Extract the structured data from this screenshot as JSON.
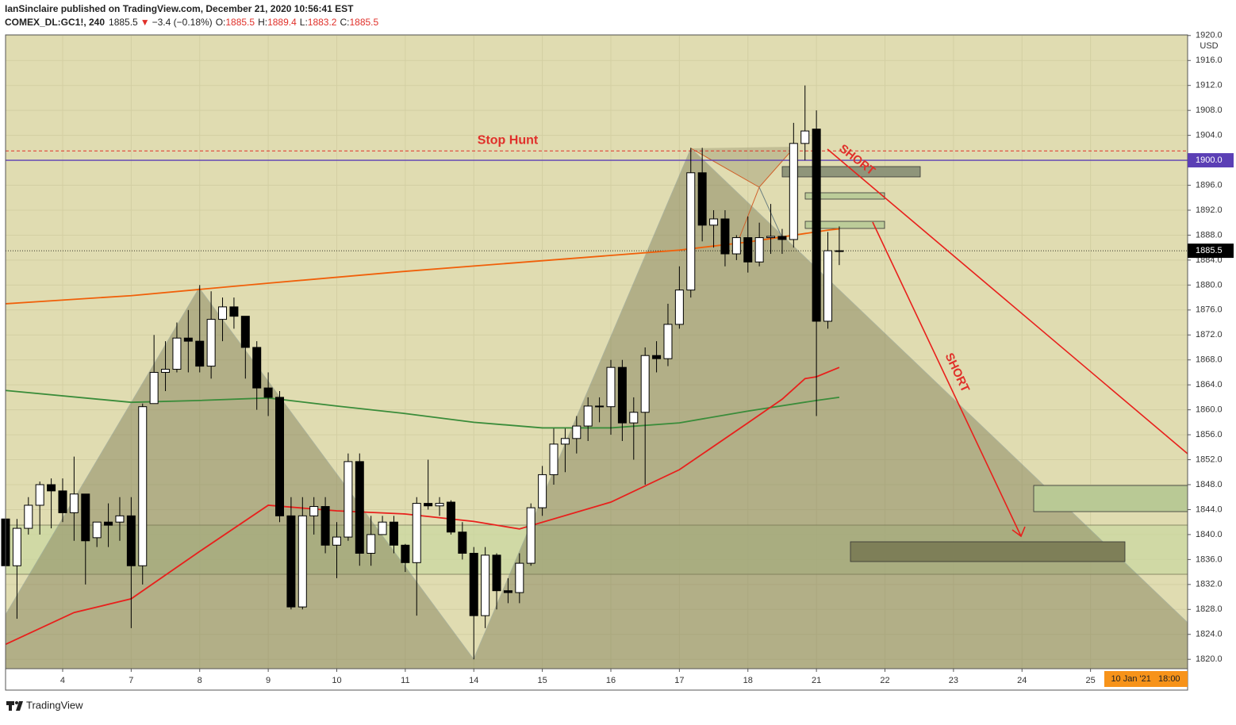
{
  "header": {
    "line1": "IanSinclaire published on TradingView.com, December 21, 2020 10:56:41 EST",
    "symbol": "COMEX_DL:GC1!, 240",
    "last": "1885.5",
    "arrow": "▼",
    "change": "−3.4 (−0.18%)",
    "o_label": "O:",
    "o": "1885.5",
    "h_label": "H:",
    "h": "1889.4",
    "l_label": "L:",
    "l": "1883.2",
    "c_label": "C:",
    "c": "1885.5"
  },
  "footer": {
    "brand": "TradingView"
  },
  "chart_data": {
    "type": "candlestick",
    "currency": "USD",
    "ylim": [
      1818.5,
      1920.1
    ],
    "xlim": [
      0,
      103.5
    ],
    "grid": true,
    "yticks": [
      {
        "value": 1820,
        "label": "1820.0"
      },
      {
        "value": 1824,
        "label": "1824.0"
      },
      {
        "value": 1828,
        "label": "1828.0"
      },
      {
        "value": 1832,
        "label": "1832.0"
      },
      {
        "value": 1836,
        "label": "1836.0"
      },
      {
        "value": 1840,
        "label": "1840.0"
      },
      {
        "value": 1844,
        "label": "1844.0"
      },
      {
        "value": 1848,
        "label": "1848.0"
      },
      {
        "value": 1852,
        "label": "1852.0"
      },
      {
        "value": 1856,
        "label": "1856.0"
      },
      {
        "value": 1860,
        "label": "1860.0"
      },
      {
        "value": 1864,
        "label": "1864.0"
      },
      {
        "value": 1868,
        "label": "1868.0"
      },
      {
        "value": 1872,
        "label": "1872.0"
      },
      {
        "value": 1876,
        "label": "1876.0"
      },
      {
        "value": 1880,
        "label": "1880.0"
      },
      {
        "value": 1884,
        "label": "1884.0"
      },
      {
        "value": 1888,
        "label": "1888.0"
      },
      {
        "value": 1892,
        "label": "1892.0"
      },
      {
        "value": 1896,
        "label": "1896.0"
      },
      {
        "value": 1904,
        "label": "1904.0"
      },
      {
        "value": 1908,
        "label": "1908.0"
      },
      {
        "value": 1912,
        "label": "1912.0"
      },
      {
        "value": 1916,
        "label": "1916.0"
      },
      {
        "value": 1920,
        "label": "1920.0"
      }
    ],
    "xticks": [
      {
        "value": 5,
        "label": "4"
      },
      {
        "value": 11,
        "label": "7"
      },
      {
        "value": 17,
        "label": "8"
      },
      {
        "value": 23,
        "label": "9"
      },
      {
        "value": 29,
        "label": "10"
      },
      {
        "value": 35,
        "label": "11"
      },
      {
        "value": 41,
        "label": "14"
      },
      {
        "value": 47,
        "label": "15"
      },
      {
        "value": 53,
        "label": "16"
      },
      {
        "value": 59,
        "label": "17"
      },
      {
        "value": 65,
        "label": "18"
      },
      {
        "value": 71,
        "label": "21"
      },
      {
        "value": 77,
        "label": "22"
      },
      {
        "value": 83,
        "label": "23"
      },
      {
        "value": 89,
        "label": "24"
      },
      {
        "value": 95,
        "label": "25"
      }
    ],
    "time_cursor_label": "10 Jan '21   18:00",
    "price_labels": [
      {
        "value": 1900,
        "label": "1900.0",
        "color": "#5b3fb5"
      },
      {
        "value": 1885.5,
        "label": "1885.5",
        "color": "#000000"
      }
    ],
    "stop_hunt": {
      "label": "Stop Hunt",
      "value": 1901.5,
      "color": "#e0302a"
    },
    "annotations": [
      "SHORT",
      "SHORT"
    ],
    "candles": [
      {
        "open": 1842.5,
        "high": 1843,
        "low": 1834.5,
        "close": 1835
      },
      {
        "open": 1835,
        "high": 1842.5,
        "low": 1826.5,
        "close": 1841
      },
      {
        "open": 1841,
        "high": 1846,
        "low": 1840,
        "close": 1844.7
      },
      {
        "open": 1844.7,
        "high": 1848.5,
        "low": 1840,
        "close": 1848
      },
      {
        "open": 1848,
        "high": 1849,
        "low": 1841,
        "close": 1847
      },
      {
        "open": 1847,
        "high": 1849,
        "low": 1842,
        "close": 1843.5
      },
      {
        "open": 1843.5,
        "high": 1852.5,
        "low": 1839,
        "close": 1846.5
      },
      {
        "open": 1846.5,
        "high": 1846.5,
        "low": 1832,
        "close": 1839
      },
      {
        "open": 1839.5,
        "high": 1842,
        "low": 1838,
        "close": 1842
      },
      {
        "open": 1842,
        "high": 1845,
        "low": 1838,
        "close": 1841.5
      },
      {
        "open": 1842,
        "high": 1846,
        "low": 1839,
        "close": 1843
      },
      {
        "open": 1843,
        "high": 1846,
        "low": 1825,
        "close": 1835
      },
      {
        "open": 1835,
        "high": 1861,
        "low": 1832,
        "close": 1860.5
      },
      {
        "open": 1861,
        "high": 1872,
        "low": 1861,
        "close": 1866
      },
      {
        "open": 1866,
        "high": 1871,
        "low": 1863,
        "close": 1866.5
      },
      {
        "open": 1866.5,
        "high": 1874,
        "low": 1866,
        "close": 1871.5
      },
      {
        "open": 1871.5,
        "high": 1876,
        "low": 1866,
        "close": 1871
      },
      {
        "open": 1871,
        "high": 1880,
        "low": 1866,
        "close": 1867
      },
      {
        "open": 1867,
        "high": 1879,
        "low": 1865,
        "close": 1874.5
      },
      {
        "open": 1874.5,
        "high": 1878,
        "low": 1871,
        "close": 1876.5
      },
      {
        "open": 1876.5,
        "high": 1878,
        "low": 1873,
        "close": 1875
      },
      {
        "open": 1875,
        "high": 1875,
        "low": 1865,
        "close": 1870
      },
      {
        "open": 1870,
        "high": 1871,
        "low": 1860,
        "close": 1863.5
      },
      {
        "open": 1863.5,
        "high": 1866,
        "low": 1859,
        "close": 1862
      },
      {
        "open": 1862,
        "high": 1863,
        "low": 1842,
        "close": 1843
      },
      {
        "open": 1843,
        "high": 1846,
        "low": 1828,
        "close": 1828.4
      },
      {
        "open": 1828.4,
        "high": 1846,
        "low": 1828,
        "close": 1843
      },
      {
        "open": 1843,
        "high": 1846,
        "low": 1840,
        "close": 1844.5
      },
      {
        "open": 1844.5,
        "high": 1846,
        "low": 1837,
        "close": 1838.3
      },
      {
        "open": 1838.3,
        "high": 1842,
        "low": 1833,
        "close": 1839.6
      },
      {
        "open": 1839.6,
        "high": 1853,
        "low": 1839,
        "close": 1851.7
      },
      {
        "open": 1851.7,
        "high": 1853,
        "low": 1835,
        "close": 1837
      },
      {
        "open": 1837,
        "high": 1843,
        "low": 1835,
        "close": 1840
      },
      {
        "open": 1840,
        "high": 1843,
        "low": 1840,
        "close": 1842
      },
      {
        "open": 1842,
        "high": 1843,
        "low": 1837,
        "close": 1838.3
      },
      {
        "open": 1838.3,
        "high": 1838.5,
        "low": 1834,
        "close": 1835.5
      },
      {
        "open": 1835.5,
        "high": 1846,
        "low": 1827,
        "close": 1845
      },
      {
        "open": 1845,
        "high": 1852,
        "low": 1844,
        "close": 1844.6
      },
      {
        "open": 1844.6,
        "high": 1846,
        "low": 1843,
        "close": 1845
      },
      {
        "open": 1845.2,
        "high": 1845.5,
        "low": 1840,
        "close": 1840.4
      },
      {
        "open": 1840.4,
        "high": 1842,
        "low": 1836,
        "close": 1837
      },
      {
        "open": 1837,
        "high": 1838,
        "low": 1820,
        "close": 1827
      },
      {
        "open": 1827,
        "high": 1838,
        "low": 1825,
        "close": 1836.7
      },
      {
        "open": 1836.7,
        "high": 1837,
        "low": 1828,
        "close": 1831
      },
      {
        "open": 1831,
        "high": 1833,
        "low": 1829,
        "close": 1830.7
      },
      {
        "open": 1830.7,
        "high": 1837,
        "low": 1829,
        "close": 1835.4
      },
      {
        "open": 1835.4,
        "high": 1845,
        "low": 1835,
        "close": 1844.3
      },
      {
        "open": 1844.3,
        "high": 1851,
        "low": 1843,
        "close": 1849.6
      },
      {
        "open": 1849.6,
        "high": 1857,
        "low": 1848,
        "close": 1854.5
      },
      {
        "open": 1854.5,
        "high": 1857,
        "low": 1850,
        "close": 1855.4
      },
      {
        "open": 1855.4,
        "high": 1859,
        "low": 1853,
        "close": 1857.4
      },
      {
        "open": 1857.4,
        "high": 1862,
        "low": 1855,
        "close": 1860.6
      },
      {
        "open": 1860.6,
        "high": 1862,
        "low": 1858,
        "close": 1860.5
      },
      {
        "open": 1860.5,
        "high": 1868,
        "low": 1856,
        "close": 1866.8
      },
      {
        "open": 1866.8,
        "high": 1868,
        "low": 1855,
        "close": 1857.9
      },
      {
        "open": 1857.9,
        "high": 1862,
        "low": 1852,
        "close": 1859.6
      },
      {
        "open": 1859.6,
        "high": 1870,
        "low": 1848,
        "close": 1868.7
      },
      {
        "open": 1868.7,
        "high": 1871,
        "low": 1866,
        "close": 1868.2
      },
      {
        "open": 1868.2,
        "high": 1877,
        "low": 1867,
        "close": 1873.7
      },
      {
        "open": 1873.7,
        "high": 1883,
        "low": 1873,
        "close": 1879.2
      },
      {
        "open": 1879.2,
        "high": 1902,
        "low": 1878,
        "close": 1898
      },
      {
        "open": 1898,
        "high": 1902,
        "low": 1887,
        "close": 1889.6
      },
      {
        "open": 1889.6,
        "high": 1892,
        "low": 1886,
        "close": 1890.6
      },
      {
        "open": 1890.6,
        "high": 1892,
        "low": 1883,
        "close": 1885
      },
      {
        "open": 1885,
        "high": 1888,
        "low": 1884,
        "close": 1887.6
      },
      {
        "open": 1887.6,
        "high": 1891,
        "low": 1882,
        "close": 1883.7
      },
      {
        "open": 1883.7,
        "high": 1890,
        "low": 1883,
        "close": 1887.6
      },
      {
        "open": 1887.6,
        "high": 1893,
        "low": 1885,
        "close": 1887.8
      },
      {
        "open": 1887.8,
        "high": 1889,
        "low": 1885,
        "close": 1887.3
      },
      {
        "open": 1887.3,
        "high": 1906,
        "low": 1886,
        "close": 1902.7
      },
      {
        "open": 1902.7,
        "high": 1912,
        "low": 1900,
        "close": 1904.7
      },
      {
        "open": 1905,
        "high": 1908,
        "low": 1859,
        "close": 1874.2
      },
      {
        "open": 1874.2,
        "high": 1888.5,
        "low": 1873,
        "close": 1885.5
      },
      {
        "open": 1885.5,
        "high": 1889.4,
        "low": 1883.2,
        "close": 1885.5
      }
    ],
    "series": [
      {
        "color": "#f0600a",
        "x": [
          0,
          11,
          23,
          35,
          47,
          59,
          65,
          72,
          73
        ],
        "values": [
          1877.0,
          1878.3,
          1880.3,
          1882.2,
          1883.9,
          1885.6,
          1886.9,
          1888.8,
          1889.0
        ]
      },
      {
        "color": "#3a8c3a",
        "x": [
          0,
          11,
          17,
          23,
          29,
          35,
          41,
          47,
          53,
          59,
          65,
          71,
          73
        ],
        "values": [
          1863.1,
          1861.2,
          1861.5,
          1861.9,
          1860.6,
          1859.4,
          1858,
          1857.1,
          1857.1,
          1857.9,
          1859.8,
          1861.5,
          1862
        ]
      },
      {
        "color": "#e8201c",
        "x": [
          0,
          6,
          11,
          17,
          23,
          29,
          35,
          41,
          45,
          53,
          59,
          65,
          68,
          70,
          71,
          73
        ],
        "values": [
          1822.4,
          1827.5,
          1829.7,
          1837.3,
          1844.7,
          1843.8,
          1843.3,
          1842.1,
          1840.9,
          1845.2,
          1850.4,
          1857.9,
          1861.7,
          1865,
          1865.3,
          1866.8
        ]
      }
    ]
  }
}
